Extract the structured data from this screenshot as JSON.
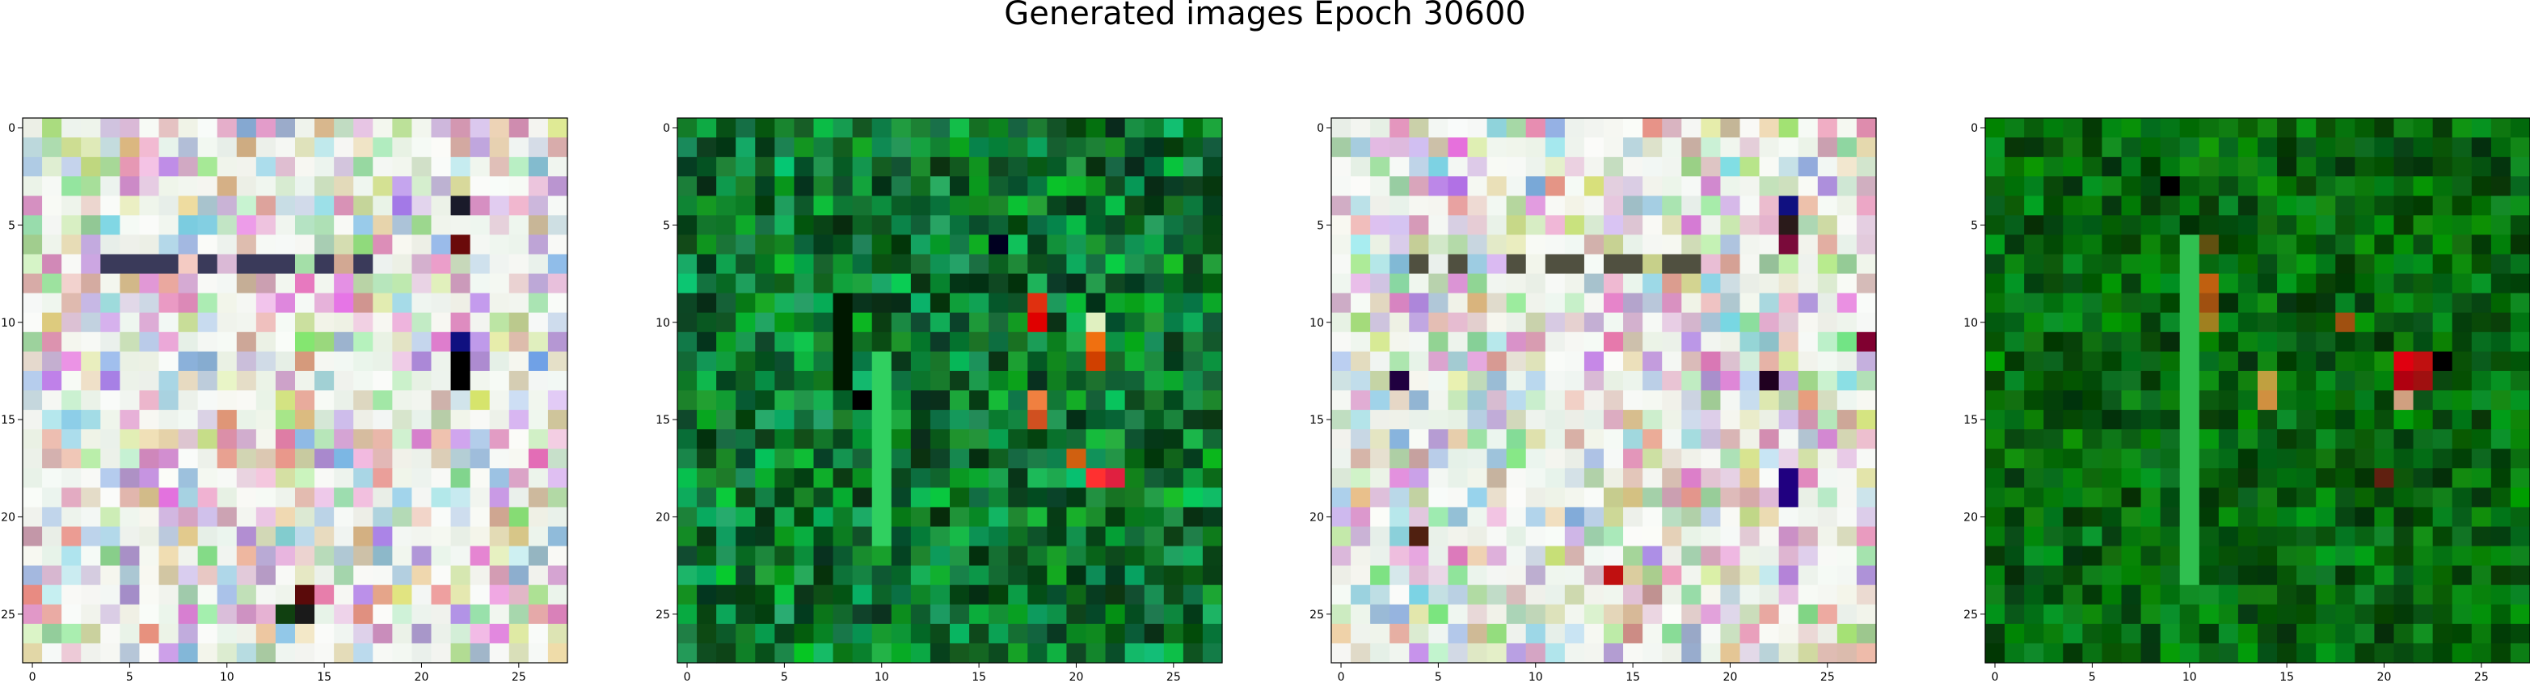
{
  "figure": {
    "title": "Generated images Epoch 30600"
  },
  "chart_data": [
    {
      "type": "heatmap",
      "title": "",
      "xlabel": "",
      "ylabel": "",
      "grid": false,
      "shape": [
        28,
        28
      ],
      "xlim": [
        -0.5,
        27.5
      ],
      "ylim": [
        27.5,
        -0.5
      ],
      "x_ticks": [
        0,
        5,
        10,
        15,
        20,
        25
      ],
      "y_ticks": [
        0,
        5,
        10,
        15,
        20,
        25
      ],
      "palette": "pastel",
      "seed": 11,
      "features": [
        {
          "kind": "row",
          "at": 7,
          "color": "#3a3a5a",
          "cells": [
            4,
            5,
            6,
            7,
            9,
            11,
            12,
            13,
            15,
            17
          ]
        },
        {
          "kind": "cell",
          "at": [
            22,
            4
          ],
          "color": "#1a1a2a"
        },
        {
          "kind": "cell",
          "at": [
            22,
            6
          ],
          "color": "#6a0a0a"
        },
        {
          "kind": "cell",
          "at": [
            22,
            11
          ],
          "color": "#101080"
        },
        {
          "kind": "cell",
          "at": [
            22,
            12
          ],
          "color": "#000000"
        },
        {
          "kind": "cell",
          "at": [
            22,
            13
          ],
          "color": "#000000"
        },
        {
          "kind": "cell",
          "at": [
            14,
            24
          ],
          "color": "#5a0a0a"
        },
        {
          "kind": "cell",
          "at": [
            14,
            25
          ],
          "color": "#1a1a1a"
        },
        {
          "kind": "cell",
          "at": [
            13,
            25
          ],
          "color": "#104010"
        }
      ]
    },
    {
      "type": "heatmap",
      "title": "",
      "xlabel": "",
      "ylabel": "",
      "grid": false,
      "shape": [
        28,
        28
      ],
      "xlim": [
        -0.5,
        27.5
      ],
      "ylim": [
        27.5,
        -0.5
      ],
      "x_ticks": [
        0,
        5,
        10,
        15,
        20,
        25
      ],
      "y_ticks": [
        0,
        5,
        10,
        15,
        20,
        25
      ],
      "palette": "green",
      "seed": 23,
      "features": [
        {
          "kind": "col",
          "at": 8,
          "color": "#001800",
          "cells": [
            9,
            10,
            11,
            12,
            13
          ]
        },
        {
          "kind": "col",
          "at": 10,
          "color": "#30d060",
          "cells": [
            12,
            13,
            14,
            15,
            16,
            17,
            18,
            19,
            20,
            21
          ]
        },
        {
          "kind": "cell",
          "at": [
            18,
            9
          ],
          "color": "#e03010"
        },
        {
          "kind": "cell",
          "at": [
            18,
            10
          ],
          "color": "#e00000"
        },
        {
          "kind": "cell",
          "at": [
            21,
            11
          ],
          "color": "#f07010"
        },
        {
          "kind": "cell",
          "at": [
            21,
            12
          ],
          "color": "#d04000"
        },
        {
          "kind": "cell",
          "at": [
            21,
            18
          ],
          "color": "#ff3030"
        },
        {
          "kind": "cell",
          "at": [
            22,
            18
          ],
          "color": "#e02040"
        },
        {
          "kind": "cell",
          "at": [
            18,
            14
          ],
          "color": "#f08040"
        },
        {
          "kind": "cell",
          "at": [
            18,
            15
          ],
          "color": "#d05020"
        },
        {
          "kind": "cell",
          "at": [
            20,
            17
          ],
          "color": "#d06010"
        },
        {
          "kind": "cell",
          "at": [
            21,
            10
          ],
          "color": "#e0f0c0"
        },
        {
          "kind": "cell",
          "at": [
            9,
            14
          ],
          "color": "#000000"
        },
        {
          "kind": "cell",
          "at": [
            16,
            6
          ],
          "color": "#000020"
        }
      ]
    },
    {
      "type": "heatmap",
      "title": "",
      "xlabel": "",
      "ylabel": "",
      "grid": false,
      "shape": [
        28,
        28
      ],
      "xlim": [
        -0.5,
        27.5
      ],
      "ylim": [
        27.5,
        -0.5
      ],
      "x_ticks": [
        0,
        5,
        10,
        15,
        20,
        25
      ],
      "y_ticks": [
        0,
        5,
        10,
        15,
        20,
        25
      ],
      "palette": "pastel",
      "seed": 37,
      "features": [
        {
          "kind": "row",
          "at": 7,
          "color": "#505040",
          "cells": [
            4,
            6,
            9,
            11,
            12,
            14,
            15,
            17,
            18
          ]
        },
        {
          "kind": "cell",
          "at": [
            23,
            4
          ],
          "color": "#101080"
        },
        {
          "kind": "cell",
          "at": [
            23,
            5
          ],
          "color": "#2a1a1a"
        },
        {
          "kind": "cell",
          "at": [
            23,
            6
          ],
          "color": "#7a0a3a"
        },
        {
          "kind": "cell",
          "at": [
            22,
            13
          ],
          "color": "#200020"
        },
        {
          "kind": "cell",
          "at": [
            23,
            18
          ],
          "color": "#200080"
        },
        {
          "kind": "cell",
          "at": [
            23,
            19
          ],
          "color": "#200080"
        },
        {
          "kind": "cell",
          "at": [
            14,
            23
          ],
          "color": "#c01010"
        },
        {
          "kind": "cell",
          "at": [
            3,
            13
          ],
          "color": "#200040"
        },
        {
          "kind": "cell",
          "at": [
            27,
            11
          ],
          "color": "#800030"
        },
        {
          "kind": "cell",
          "at": [
            4,
            21
          ],
          "color": "#502010"
        }
      ]
    },
    {
      "type": "heatmap",
      "title": "",
      "xlabel": "",
      "ylabel": "",
      "grid": false,
      "shape": [
        28,
        28
      ],
      "xlim": [
        -0.5,
        27.5
      ],
      "ylim": [
        27.5,
        -0.5
      ],
      "x_ticks": [
        0,
        5,
        10,
        15,
        20,
        25
      ],
      "y_ticks": [
        0,
        5,
        10,
        15,
        20,
        25
      ],
      "palette": "darkgreen",
      "seed": 51,
      "features": [
        {
          "kind": "col",
          "at": 10,
          "color": "#30c050",
          "cells": [
            6,
            7,
            8,
            9,
            10,
            11,
            12,
            13,
            14,
            15,
            16,
            17,
            18,
            19,
            20,
            21,
            22,
            23
          ]
        },
        {
          "kind": "cell",
          "at": [
            21,
            12
          ],
          "color": "#e00010"
        },
        {
          "kind": "cell",
          "at": [
            22,
            12
          ],
          "color": "#c01010"
        },
        {
          "kind": "cell",
          "at": [
            21,
            13
          ],
          "color": "#b00010"
        },
        {
          "kind": "cell",
          "at": [
            22,
            13
          ],
          "color": "#a01010"
        },
        {
          "kind": "cell",
          "at": [
            11,
            8
          ],
          "color": "#c06010"
        },
        {
          "kind": "cell",
          "at": [
            11,
            9
          ],
          "color": "#a05010"
        },
        {
          "kind": "cell",
          "at": [
            18,
            10
          ],
          "color": "#a05010"
        },
        {
          "kind": "cell",
          "at": [
            14,
            13
          ],
          "color": "#c0a040"
        },
        {
          "kind": "cell",
          "at": [
            14,
            14
          ],
          "color": "#d09040"
        },
        {
          "kind": "cell",
          "at": [
            21,
            14
          ],
          "color": "#d0a080"
        },
        {
          "kind": "cell",
          "at": [
            11,
            6
          ],
          "color": "#605010"
        },
        {
          "kind": "cell",
          "at": [
            11,
            10
          ],
          "color": "#a08020"
        },
        {
          "kind": "cell",
          "at": [
            9,
            3
          ],
          "color": "#000000"
        },
        {
          "kind": "cell",
          "at": [
            23,
            12
          ],
          "color": "#000000"
        },
        {
          "kind": "cell",
          "at": [
            20,
            18
          ],
          "color": "#602010"
        }
      ]
    }
  ]
}
